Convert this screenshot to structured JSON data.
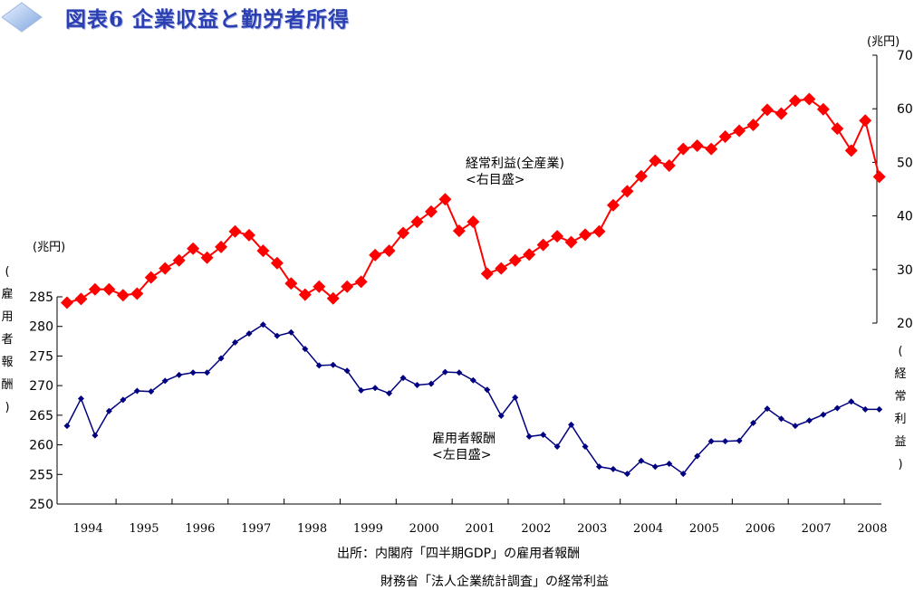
{
  "title": "図表6 企業収益と勤労者所得",
  "unit_left": "(兆円)",
  "unit_right": "(兆円)",
  "left_axis_label": "(雇用者報酬)",
  "right_axis_label": "(経常利益)",
  "source_line1": "出所：内閣府「四半期GDP」の雇用者報酬",
  "source_line2": "財務省「法人企業統計調査」の経常利益",
  "annotation_profit": [
    "経常利益(全産業)",
    "<右目盛>"
  ],
  "annotation_comp": [
    "雇用者報酬",
    "<左目盛>"
  ],
  "colors": {
    "profit": "#ff0000",
    "comp": "#000080",
    "title": "#2b3fb0"
  },
  "chart_data": {
    "type": "line",
    "title": "図表6 企業収益と勤労者所得",
    "x_tick_labels": [
      "1994",
      "1995",
      "1996",
      "1997",
      "1998",
      "1999",
      "2000",
      "2001",
      "2002",
      "2003",
      "2004",
      "2005",
      "2006",
      "2007",
      "2008"
    ],
    "x_start": "1994Q1",
    "frequency": "quarterly",
    "left_axis": {
      "label": "雇用者報酬",
      "unit": "兆円",
      "range": [
        250,
        285
      ],
      "ticks": [
        250,
        255,
        260,
        265,
        270,
        275,
        280,
        285
      ]
    },
    "right_axis": {
      "label": "経常利益",
      "unit": "兆円",
      "range": [
        20,
        70
      ],
      "ticks": [
        20,
        30,
        40,
        50,
        60,
        70
      ]
    },
    "series": [
      {
        "name": "経常利益(全産業)",
        "axis": "right",
        "marker": "diamond",
        "color": "#ff0000",
        "values": [
          23.8,
          24.5,
          26.3,
          26.3,
          25.2,
          25.5,
          28.5,
          30.2,
          31.7,
          33.9,
          32.2,
          34.2,
          37.1,
          36.4,
          33.5,
          31.2,
          27.4,
          25.3,
          26.8,
          24.6,
          26.8,
          27.7,
          32.7,
          33.5,
          36.8,
          38.9,
          40.8,
          43.1,
          37.2,
          38.9,
          29.2,
          30.2,
          31.7,
          32.8,
          34.6,
          36.2,
          35.1,
          36.5,
          37.1,
          42.0,
          44.6,
          47.4,
          50.3,
          49.4,
          52.5,
          53.1,
          52.5,
          54.8,
          55.9,
          57.0,
          59.8,
          59.1,
          61.5,
          61.8,
          59.9,
          56.3,
          52.2,
          57.8,
          47.3
        ]
      },
      {
        "name": "雇用者報酬",
        "axis": "left",
        "marker": "diamond",
        "color": "#000080",
        "values": [
          263.2,
          267.8,
          261.6,
          265.7,
          267.6,
          269.1,
          269.0,
          270.8,
          271.8,
          272.2,
          272.2,
          274.6,
          277.3,
          278.8,
          280.3,
          278.4,
          279.0,
          276.2,
          273.4,
          273.5,
          272.5,
          269.2,
          269.6,
          268.7,
          271.3,
          270.1,
          270.3,
          272.3,
          272.2,
          270.9,
          269.3,
          264.9,
          268.0,
          261.4,
          261.7,
          259.7,
          263.4,
          259.7,
          256.3,
          255.9,
          255.1,
          257.3,
          256.3,
          256.8,
          255.1,
          258.1,
          260.6,
          260.6,
          260.7,
          263.7,
          266.1,
          264.4,
          263.2,
          264.1,
          265.1,
          266.2,
          267.3,
          266.0,
          266.0
        ]
      }
    ],
    "grid": false,
    "legend": "none"
  }
}
